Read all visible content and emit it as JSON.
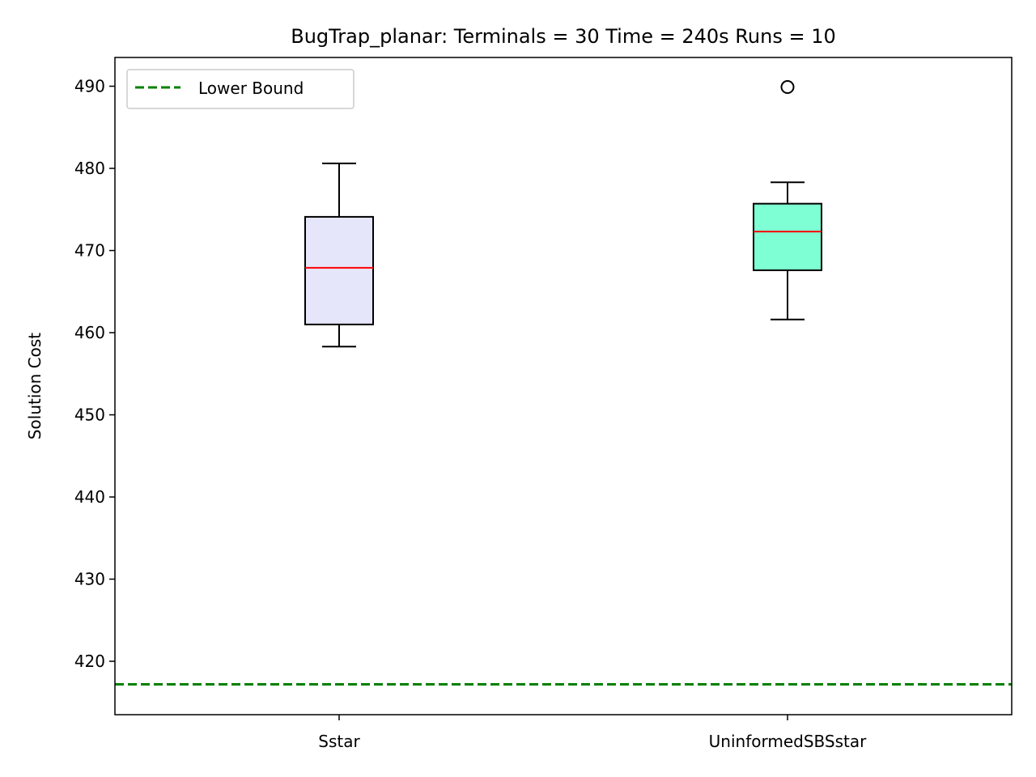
{
  "chart_data": {
    "type": "box",
    "title": "BugTrap_planar:  Terminals = 30  Time = 240s  Runs = 10",
    "xlabel": "",
    "ylabel": "Solution Cost",
    "ylim": [
      413.5,
      493.5
    ],
    "yticks": [
      420,
      430,
      440,
      450,
      460,
      470,
      480,
      490
    ],
    "categories": [
      "Sstar",
      "UninformedSBSstar"
    ],
    "boxes": [
      {
        "name": "Sstar",
        "whisker_low": 458.3,
        "q1": 461.0,
        "median": 467.9,
        "q3": 474.1,
        "whisker_high": 480.6,
        "outliers": [],
        "fill": "#e6e6fa"
      },
      {
        "name": "UninformedSBSstar",
        "whisker_low": 461.6,
        "q1": 467.6,
        "median": 472.3,
        "q3": 475.7,
        "whisker_high": 478.3,
        "outliers": [
          489.9
        ],
        "fill": "#7fffd4"
      }
    ],
    "lower_bound": {
      "label": "Lower Bound",
      "value": 417.2,
      "color": "#008000"
    },
    "median_color": "#ff0000",
    "grid": false,
    "legend_position": "upper-left"
  }
}
